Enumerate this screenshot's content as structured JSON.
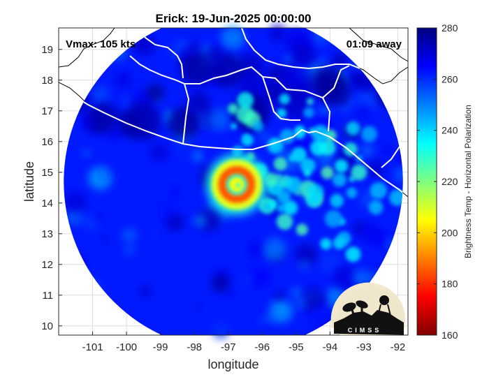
{
  "chart_data": {
    "type": "heatmap",
    "title": "Erick: 19-Jun-2025 00:00:00",
    "annotations": {
      "vmax": "Vmax: 105 kts",
      "time_offset": "01:09 away",
      "logo_text": "CIMSS"
    },
    "xlabel": "longitude",
    "ylabel": "latitude",
    "xlim": [
      -102.0,
      -91.7
    ],
    "ylim": [
      9.7,
      19.7
    ],
    "xticks": [
      -101,
      -100,
      -99,
      -98,
      -97,
      -96,
      -95,
      -94,
      -93,
      -92
    ],
    "yticks": [
      10,
      11,
      12,
      13,
      14,
      15,
      16,
      17,
      18,
      19
    ],
    "grid": true,
    "colorbar": {
      "label": "Brightness Temp - Horizontal Polarization",
      "min": 160,
      "max": 280,
      "ticks": [
        160,
        180,
        200,
        220,
        240,
        260,
        280
      ],
      "colormap": "jet"
    },
    "swath": {
      "center": [
        -96.85,
        14.7
      ],
      "radius_deg": 5.0
    },
    "storm": {
      "eye_center": [
        -96.75,
        14.6
      ],
      "eye_tb": 205,
      "eyewall_tb": 185,
      "background_tb": 262
    }
  },
  "colors": {
    "background": "#ffffff",
    "axes_box": "#262626",
    "grid": "#dedede",
    "coastline": "#ffffff",
    "land_outline": "#000000"
  }
}
